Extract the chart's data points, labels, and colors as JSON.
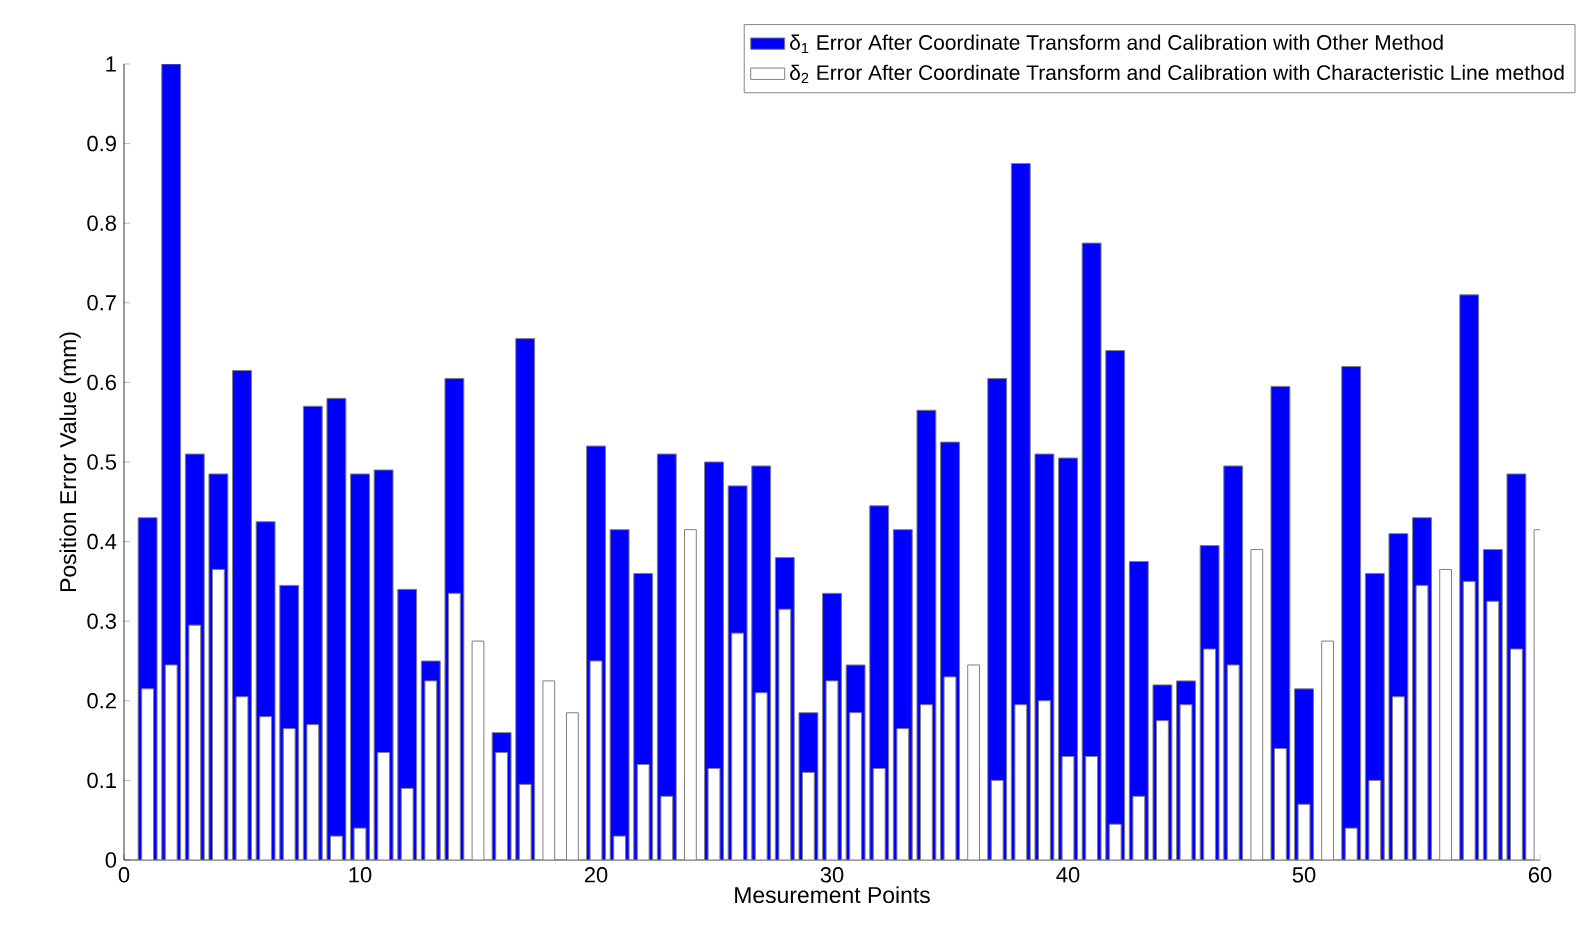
{
  "chart_data": {
    "type": "bar",
    "xlabel": "Mesurement Points",
    "ylabel": "Position Error Value (mm)",
    "x": [
      1,
      2,
      3,
      4,
      5,
      6,
      7,
      8,
      9,
      10,
      11,
      12,
      13,
      14,
      15,
      16,
      17,
      18,
      19,
      20,
      21,
      22,
      23,
      24,
      25,
      26,
      27,
      28,
      29,
      30,
      31,
      32,
      33,
      34,
      35,
      36,
      37,
      38,
      39,
      40,
      41,
      42,
      43,
      44,
      45,
      46,
      47,
      48,
      49,
      50,
      51,
      52,
      53,
      54,
      55,
      56,
      57,
      58,
      59,
      60
    ],
    "series": [
      {
        "name": "δ$_{1}$ Error After Coordinate Transform and Calibration with Other Method",
        "color": "#0000ff",
        "values": [
          0.43,
          1.0,
          0.51,
          0.485,
          0.615,
          0.425,
          0.345,
          0.57,
          0.58,
          0.485,
          0.49,
          0.34,
          0.25,
          0.605,
          null,
          0.16,
          0.655,
          null,
          null,
          0.52,
          0.415,
          0.36,
          0.51,
          null,
          0.5,
          0.47,
          0.495,
          0.38,
          0.185,
          0.335,
          0.245,
          0.445,
          0.415,
          0.565,
          0.525,
          null,
          0.605,
          0.875,
          0.51,
          0.505,
          0.775,
          0.64,
          0.375,
          0.22,
          0.225,
          0.395,
          0.495,
          null,
          0.595,
          0.215,
          null,
          0.62,
          0.36,
          0.41,
          0.43,
          null,
          0.71,
          0.39,
          0.485,
          null
        ]
      },
      {
        "name": "δ$_{2}$ Error After Coordinate Transform and Calibration with Characteristic Line method",
        "color": "#ffffff",
        "values": [
          0.215,
          0.245,
          0.295,
          0.365,
          0.205,
          0.18,
          0.165,
          0.17,
          0.03,
          0.04,
          0.135,
          0.09,
          0.225,
          0.335,
          0.275,
          0.135,
          0.095,
          0.225,
          0.185,
          0.25,
          0.03,
          0.12,
          0.08,
          0.415,
          0.115,
          0.285,
          0.21,
          0.315,
          0.11,
          0.225,
          0.185,
          0.115,
          0.165,
          0.195,
          0.23,
          0.245,
          0.1,
          0.195,
          0.2,
          0.13,
          0.13,
          0.045,
          0.08,
          0.175,
          0.195,
          0.265,
          0.245,
          0.39,
          0.14,
          0.07,
          0.275,
          0.04,
          0.1,
          0.205,
          0.345,
          0.365,
          0.35,
          0.325,
          0.265,
          0.415
        ]
      }
    ],
    "xlim": [
      0,
      60
    ],
    "xticks": [
      0,
      10,
      20,
      30,
      40,
      50,
      60
    ],
    "ylim": [
      0,
      1
    ],
    "yticks": [
      0,
      0.1,
      0.2,
      0.3,
      0.4,
      0.5,
      0.6,
      0.7,
      0.8,
      0.9,
      1
    ],
    "legend": "top right"
  }
}
